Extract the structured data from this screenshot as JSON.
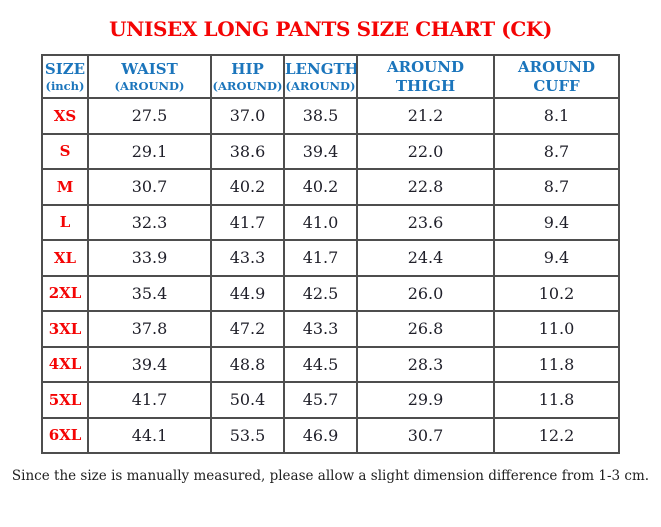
{
  "title": "UNISEX LONG PANTS SIZE CHART (CK)",
  "footer": "Since the size is manually measured, please allow a slight dimension difference from 1-3 cm.",
  "colors": {
    "title_red": "#f40404",
    "header_blue": "#1b75bc",
    "size_label_red": "#f40404",
    "value_text": "#20202a",
    "table_border": "#4e4e4e",
    "background": "#ffffff"
  },
  "table": {
    "headers": [
      {
        "line1": "SIZE",
        "line2": "(inch)"
      },
      {
        "line1": "WAIST",
        "line2": "(AROUND)"
      },
      {
        "line1": "HIP",
        "line2": "(AROUND)"
      },
      {
        "line1": "LENGTH",
        "line2": "(AROUND)"
      },
      {
        "line1": "AROUND",
        "line2": "THIGH"
      },
      {
        "line1": "AROUND",
        "line2": "CUFF"
      }
    ],
    "rows": [
      {
        "size": "XS",
        "values": [
          "27.5",
          "37.0",
          "38.5",
          "21.2",
          "8.1"
        ]
      },
      {
        "size": "S",
        "values": [
          "29.1",
          "38.6",
          "39.4",
          "22.0",
          "8.7"
        ]
      },
      {
        "size": "M",
        "values": [
          "30.7",
          "40.2",
          "40.2",
          "22.8",
          "8.7"
        ]
      },
      {
        "size": "L",
        "values": [
          "32.3",
          "41.7",
          "41.0",
          "23.6",
          "9.4"
        ]
      },
      {
        "size": "XL",
        "values": [
          "33.9",
          "43.3",
          "41.7",
          "24.4",
          "9.4"
        ]
      },
      {
        "size": "2XL",
        "values": [
          "35.4",
          "44.9",
          "42.5",
          "26.0",
          "10.2"
        ]
      },
      {
        "size": "3XL",
        "values": [
          "37.8",
          "47.2",
          "43.3",
          "26.8",
          "11.0"
        ]
      },
      {
        "size": "4XL",
        "values": [
          "39.4",
          "48.8",
          "44.5",
          "28.3",
          "11.8"
        ]
      },
      {
        "size": "5XL",
        "values": [
          "41.7",
          "50.4",
          "45.7",
          "29.9",
          "11.8"
        ]
      },
      {
        "size": "6XL",
        "values": [
          "44.1",
          "53.5",
          "46.9",
          "30.7",
          "12.2"
        ]
      }
    ]
  }
}
